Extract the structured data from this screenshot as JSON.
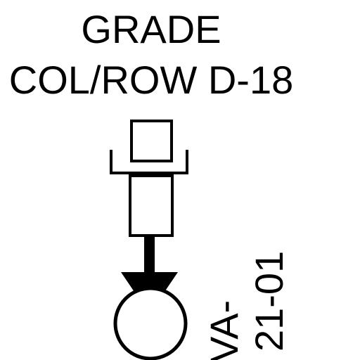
{
  "header": {
    "line1": "GRADE",
    "line2": "COL/ROW D-18"
  },
  "tag": {
    "prefix": "VA-",
    "number": "21-01"
  },
  "colors": {
    "ink": "#000000",
    "paper": "#ffffff"
  }
}
